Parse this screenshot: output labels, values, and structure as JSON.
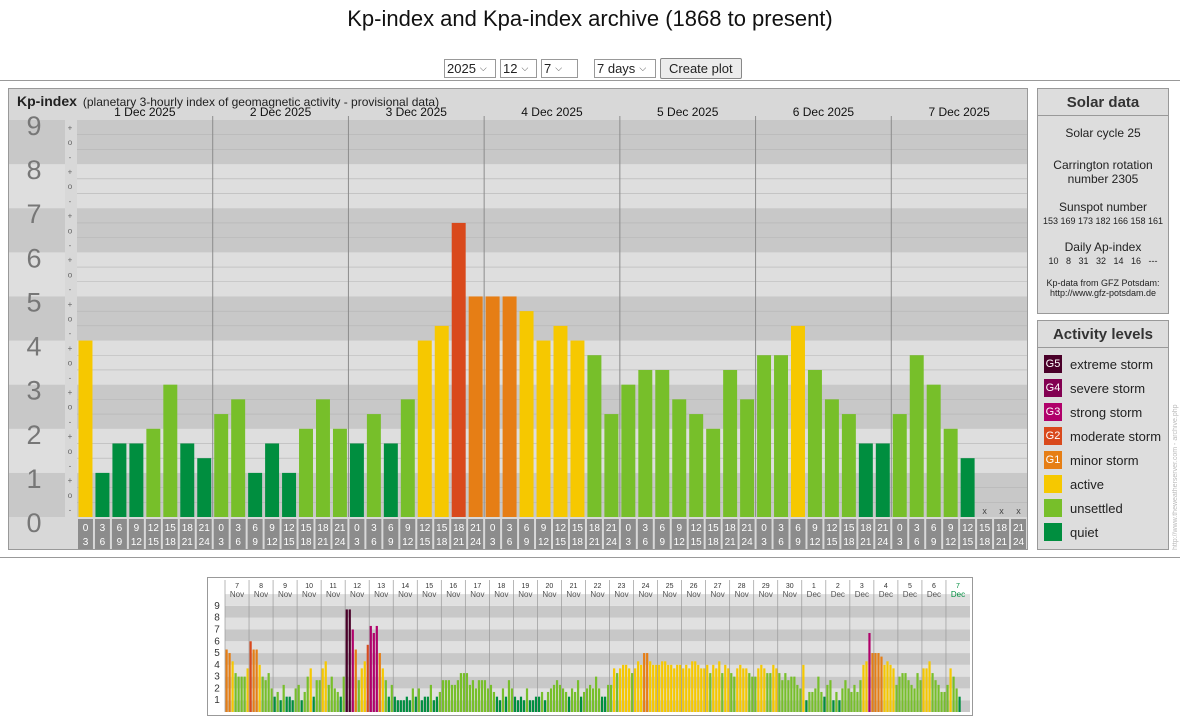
{
  "page": {
    "title": "Kp-index and Kpa-index archive (1868 to present)"
  },
  "controls": {
    "year": "2025",
    "month": "12",
    "day": "7",
    "range": "7 days",
    "button": "Create plot"
  },
  "main": {
    "heading": "Kp-index",
    "subtitle": "(planetary 3-hourly index of geomagnetic activity - provisional data)"
  },
  "chart_data": {
    "type": "bar",
    "title": "Kp-index",
    "subtitle": "(planetary 3-hourly index of geomagnetic activity - provisional data)",
    "ylim": [
      0,
      9
    ],
    "y_ticks": [
      "0",
      "1",
      "2",
      "3",
      "4",
      "5",
      "6",
      "7",
      "8",
      "9"
    ],
    "minor_ticks": [
      "-",
      "o",
      "+"
    ],
    "days": [
      "1 Dec 2025",
      "2 Dec 2025",
      "3 Dec 2025",
      "4 Dec 2025",
      "5 Dec 2025",
      "6 Dec 2025",
      "7 Dec 2025"
    ],
    "interval_top": [
      "0",
      "3",
      "6",
      "9",
      "12",
      "15",
      "18",
      "21"
    ],
    "interval_bottom": [
      "3",
      "6",
      "9",
      "12",
      "15",
      "18",
      "21",
      "24"
    ],
    "values": [
      [
        4.0,
        1.0,
        1.667,
        1.667,
        2.0,
        3.0,
        1.667,
        1.333
      ],
      [
        2.333,
        2.667,
        1.0,
        1.667,
        1.0,
        2.0,
        2.667,
        2.0
      ],
      [
        1.667,
        2.333,
        1.667,
        2.667,
        4.0,
        4.333,
        6.667,
        5.0
      ],
      [
        5.0,
        5.0,
        4.667,
        4.0,
        4.333,
        4.0,
        3.667,
        2.333
      ],
      [
        3.0,
        3.333,
        3.333,
        2.667,
        2.333,
        2.0,
        3.333,
        2.667
      ],
      [
        3.667,
        3.667,
        4.333,
        3.333,
        2.667,
        2.333,
        1.667,
        1.667
      ],
      [
        2.333,
        3.667,
        3.0,
        2.0,
        1.333,
        null,
        null,
        null
      ]
    ],
    "missing_marker": "x",
    "mini": {
      "dates_top": [
        "7",
        "8",
        "9",
        "10",
        "11",
        "12",
        "13",
        "14",
        "15",
        "16",
        "17",
        "18",
        "19",
        "20",
        "21",
        "22",
        "23",
        "24",
        "25",
        "26",
        "27",
        "28",
        "29",
        "30",
        "1",
        "2",
        "3",
        "4",
        "5",
        "6",
        "7"
      ],
      "dates_bottom": [
        "Nov",
        "Nov",
        "Nov",
        "Nov",
        "Nov",
        "Nov",
        "Nov",
        "Nov",
        "Nov",
        "Nov",
        "Nov",
        "Nov",
        "Nov",
        "Nov",
        "Nov",
        "Nov",
        "Nov",
        "Nov",
        "Nov",
        "Nov",
        "Nov",
        "Nov",
        "Nov",
        "Nov",
        "Dec",
        "Dec",
        "Dec",
        "Dec",
        "Dec",
        "Dec",
        "Dec"
      ],
      "y_ticks": [
        "1",
        "2",
        "3",
        "4",
        "5",
        "6",
        "7",
        "8",
        "9"
      ],
      "values": [
        [
          5.3,
          5.0,
          4.3,
          3.3,
          3.0,
          3.0,
          3.0,
          3.7
        ],
        [
          6.0,
          5.3,
          5.3,
          4.0,
          3.0,
          2.7,
          3.3,
          2.0
        ],
        [
          1.3,
          1.7,
          1.0,
          2.3,
          1.3,
          1.3,
          1.0,
          2.0
        ],
        [
          2.3,
          1.0,
          1.7,
          3.0,
          3.7,
          1.3,
          2.7,
          2.7
        ],
        [
          3.7,
          4.3,
          2.3,
          3.0,
          2.0,
          1.7,
          1.3,
          3.0
        ],
        [
          8.7,
          8.7,
          7.0,
          5.3,
          2.7,
          3.7,
          4.3,
          5.7
        ],
        [
          7.3,
          6.7,
          7.3,
          5.0,
          3.7,
          2.7,
          1.3,
          2.3
        ],
        [
          1.3,
          1.0,
          1.0,
          1.0,
          1.3,
          1.0,
          2.0,
          1.3
        ],
        [
          2.0,
          1.0,
          1.3,
          1.3,
          2.3,
          1.0,
          1.3,
          1.7
        ],
        [
          2.7,
          2.7,
          2.7,
          2.3,
          2.3,
          2.7,
          3.3,
          3.3
        ],
        [
          3.3,
          2.3,
          2.7,
          2.0,
          2.7,
          2.7,
          2.7,
          2.0
        ],
        [
          2.3,
          1.7,
          1.3,
          1.0,
          2.0,
          1.3,
          2.7,
          2.0
        ],
        [
          1.3,
          1.0,
          1.3,
          1.0,
          2.0,
          1.0,
          1.0,
          1.3
        ],
        [
          1.3,
          1.7,
          1.0,
          1.7,
          2.0,
          2.3,
          2.7,
          2.3
        ],
        [
          2.0,
          1.7,
          1.3,
          2.0,
          1.7,
          2.7,
          1.3,
          1.7
        ],
        [
          2.0,
          2.3,
          2.0,
          3.0,
          2.0,
          1.3,
          1.3,
          2.3
        ],
        [
          2.3,
          3.7,
          3.3,
          3.7,
          4.0,
          4.0,
          3.7,
          3.3
        ],
        [
          3.7,
          4.3,
          4.0,
          5.0,
          5.0,
          4.3,
          4.0,
          4.0
        ],
        [
          4.0,
          4.3,
          4.3,
          4.0,
          4.0,
          3.7,
          4.0,
          4.0
        ],
        [
          3.7,
          4.0,
          3.7,
          4.3,
          4.3,
          4.0,
          3.7,
          3.7
        ],
        [
          4.0,
          3.3,
          4.0,
          3.7,
          4.3,
          3.3,
          4.0,
          3.7
        ],
        [
          3.3,
          3.0,
          3.7,
          4.0,
          3.7,
          3.7,
          3.3,
          3.0
        ],
        [
          3.0,
          3.7,
          4.0,
          3.7,
          3.3,
          3.3,
          4.0,
          3.7
        ],
        [
          3.3,
          2.7,
          3.3,
          2.7,
          3.0,
          3.0,
          2.3,
          2.0
        ],
        [
          4.0,
          1.0,
          1.7,
          1.7,
          2.0,
          3.0,
          1.7,
          1.3
        ],
        [
          2.3,
          2.7,
          1.0,
          1.7,
          1.0,
          2.0,
          2.7,
          2.0
        ],
        [
          1.7,
          2.3,
          1.7,
          2.7,
          4.0,
          4.3,
          6.7,
          5.0
        ],
        [
          5.0,
          5.0,
          4.7,
          4.0,
          4.3,
          4.0,
          3.7,
          2.3
        ],
        [
          3.0,
          3.3,
          3.3,
          2.7,
          2.3,
          2.0,
          3.3,
          2.7
        ],
        [
          3.7,
          3.7,
          4.3,
          3.3,
          2.7,
          2.3,
          1.7,
          1.7
        ],
        [
          2.3,
          3.7,
          3.0,
          2.0,
          1.3,
          0,
          0,
          0
        ]
      ]
    }
  },
  "colors": {
    "quiet": "#008e3f",
    "unsettled": "#77bf2a",
    "active": "#f6c800",
    "g1": "#e67e15",
    "g2": "#d9491c",
    "g3": "#b0006a",
    "g4": "#820051",
    "g5": "#4a0029"
  },
  "solar": {
    "heading": "Solar data",
    "cycle": "Solar cycle 25",
    "carrington_1": "Carrington rotation",
    "carrington_2": "number 2305",
    "sunspot_label": "Sunspot number",
    "sunspot_values": "153 169 173 182 166 158 161",
    "ap_label": "Daily Ap-index",
    "ap_values": "10   8   31   32   14   16   ---",
    "source_1": "Kp-data from GFZ Potsdam:",
    "source_2": "http://www.gfz-potsdam.de"
  },
  "activity": {
    "heading": "Activity levels",
    "items": [
      {
        "badge": "G5",
        "label": "extreme storm",
        "color": "#4a0029"
      },
      {
        "badge": "G4",
        "label": "severe storm",
        "color": "#820051"
      },
      {
        "badge": "G3",
        "label": "strong storm",
        "color": "#b0006a"
      },
      {
        "badge": "G2",
        "label": "moderate storm",
        "color": "#d9491c"
      },
      {
        "badge": "G1",
        "label": "minor storm",
        "color": "#e67e15"
      },
      {
        "badge": "",
        "label": "active",
        "color": "#f6c800"
      },
      {
        "badge": "",
        "label": "unsettled",
        "color": "#77bf2a"
      },
      {
        "badge": "",
        "label": "quiet",
        "color": "#008e3f"
      }
    ]
  },
  "watermark": "http://www.theweatherserver.com - archive.php"
}
